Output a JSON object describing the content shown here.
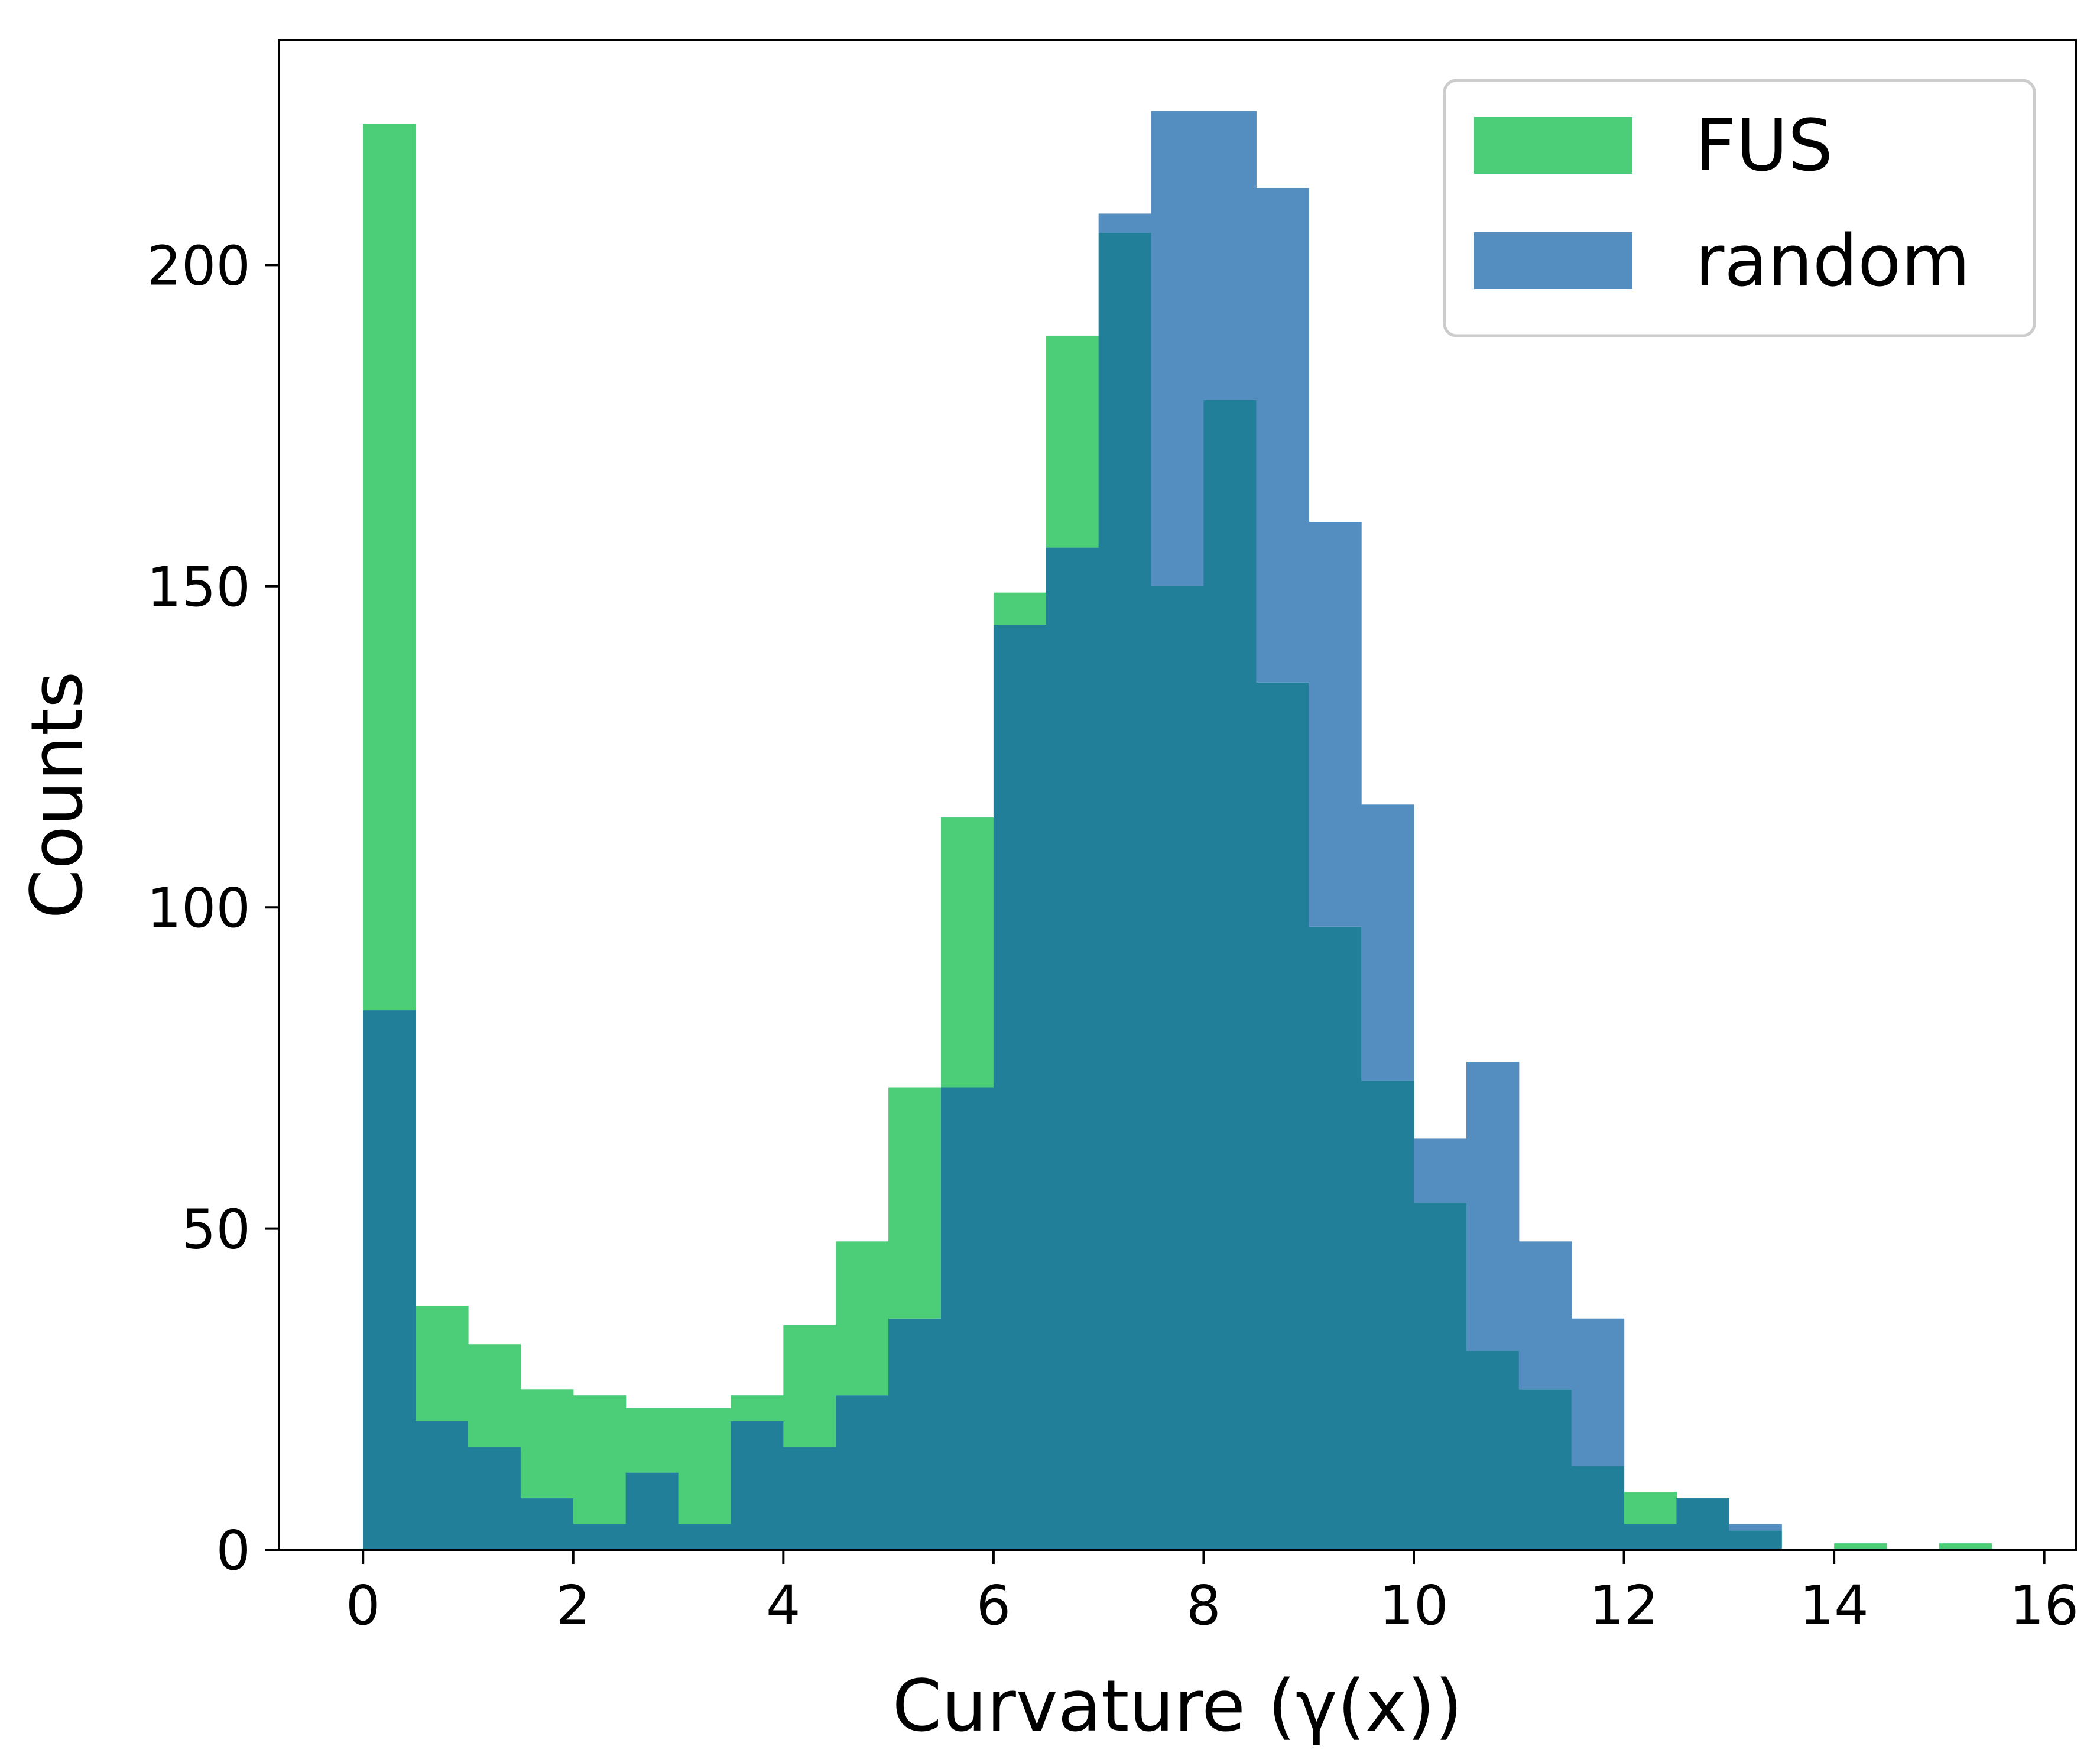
{
  "chart_data": {
    "type": "bar",
    "title": "",
    "xlabel": "Curvature (γ(x))",
    "ylabel": "Counts",
    "xlim": [
      -0.8,
      16.3
    ],
    "ylim": [
      0,
      235
    ],
    "xticks": [
      0,
      2,
      4,
      6,
      8,
      10,
      12,
      14,
      16
    ],
    "yticks": [
      0,
      50,
      100,
      150,
      200
    ],
    "bin_width": 0.5,
    "bin_edges_start": 0,
    "grid": false,
    "legend_position": "upper right",
    "series": [
      {
        "name": "FUS",
        "color": "#4ccd78",
        "values": [
          222,
          38,
          32,
          25,
          24,
          22,
          22,
          24,
          35,
          48,
          72,
          114,
          149,
          189,
          205,
          150,
          179,
          135,
          97,
          73,
          54,
          31,
          25,
          13,
          9,
          8,
          3,
          0,
          1,
          0,
          1
        ]
      },
      {
        "name": "random",
        "color": "#548ec1",
        "values": [
          84,
          20,
          16,
          8,
          4,
          12,
          4,
          20,
          16,
          24,
          36,
          72,
          144,
          156,
          208,
          224,
          224,
          212,
          160,
          116,
          64,
          76,
          48,
          36,
          4,
          8,
          4,
          0,
          0,
          0,
          0
        ]
      }
    ],
    "overlap_color": "#217f99"
  }
}
